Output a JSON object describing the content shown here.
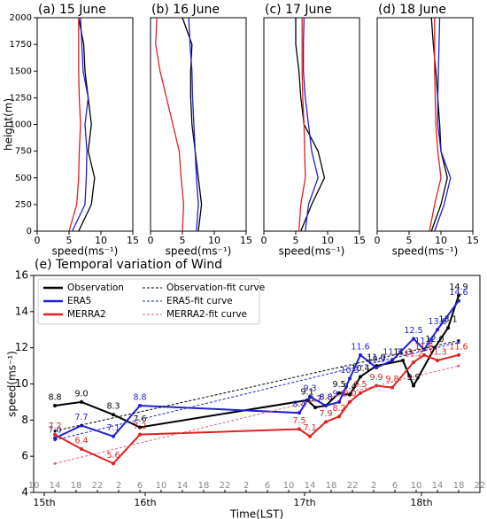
{
  "chart_data": [
    {
      "type": "line",
      "title": "(a) 15 June",
      "x_label": "speed(ms⁻¹)",
      "y_label": "height(m)",
      "y": [
        0,
        250,
        500,
        750,
        1000,
        1250,
        1500,
        1750,
        2000
      ],
      "series": [
        {
          "color": "#000000",
          "values": [
            6.5,
            8.5,
            9,
            8,
            8.5,
            8,
            7.5,
            7.3,
            6.5
          ]
        },
        {
          "color": "#2020d0",
          "values": [
            5.5,
            7.5,
            7.7,
            7.8,
            7.5,
            8,
            7.2,
            7,
            6.8
          ]
        },
        {
          "color": "#e02020",
          "values": [
            5,
            6.2,
            6.5,
            6.6,
            6.8,
            6.6,
            6.5,
            6.5,
            6.5
          ]
        }
      ],
      "xlim": [
        0,
        15
      ],
      "xticks": [
        0,
        5,
        10,
        15
      ],
      "ylim": [
        0,
        2000
      ],
      "yticks": [
        0,
        250,
        500,
        750,
        1000,
        1250,
        1500,
        1750,
        2000
      ]
    },
    {
      "type": "line",
      "title": "(b) 16 June",
      "x_label": "speed(ms⁻¹)",
      "y": [
        0,
        250,
        500,
        750,
        1000,
        1250,
        1500,
        1750,
        2000
      ],
      "series": [
        {
          "color": "#000000",
          "values": [
            7.5,
            8,
            7.5,
            7,
            6.5,
            6.3,
            6.3,
            6.5,
            5
          ]
        },
        {
          "color": "#2020d0",
          "values": [
            7.2,
            7.5,
            7.2,
            7,
            6.8,
            6.6,
            6.5,
            6.2,
            6
          ]
        },
        {
          "color": "#e02020",
          "values": [
            5,
            5.2,
            4.8,
            4.5,
            3.5,
            2.5,
            1.5,
            0.8,
            1
          ]
        }
      ],
      "xlim": [
        0,
        15
      ],
      "xticks": [
        0,
        5,
        10,
        15
      ],
      "ylim": [
        0,
        2000
      ]
    },
    {
      "type": "line",
      "title": "(c) 17 June",
      "x_label": "speed(ms⁻¹)",
      "y": [
        0,
        250,
        500,
        750,
        1000,
        1250,
        1500,
        1750,
        2000
      ],
      "series": [
        {
          "color": "#000000",
          "values": [
            5.8,
            7.5,
            9.5,
            8.5,
            6.3,
            5.8,
            5.5,
            5,
            5
          ]
        },
        {
          "color": "#2020d0",
          "values": [
            6.5,
            7,
            8.5,
            7.5,
            7,
            6.5,
            6.2,
            6.2,
            6.3
          ]
        },
        {
          "color": "#e02020",
          "values": [
            5.5,
            5.8,
            6.5,
            6.4,
            6.3,
            6.1,
            6,
            6,
            6
          ]
        }
      ],
      "xlim": [
        0,
        15
      ],
      "xticks": [
        0,
        5,
        10,
        15
      ],
      "ylim": [
        0,
        2000
      ]
    },
    {
      "type": "line",
      "title": "(d) 18 June",
      "x_label": "speed(ms⁻¹)",
      "y": [
        0,
        250,
        500,
        750,
        1000,
        1250,
        1500,
        1750,
        2000
      ],
      "series": [
        {
          "color": "#000000",
          "values": [
            8.5,
            10,
            11,
            10,
            9.8,
            9.5,
            9.2,
            8.8,
            8.5
          ]
        },
        {
          "color": "#2020d0",
          "values": [
            9,
            10.5,
            11.5,
            10,
            9.5,
            9.5,
            9.6,
            9.7,
            9.8
          ]
        },
        {
          "color": "#e02020",
          "values": [
            8.2,
            9,
            10,
            9.5,
            9.2,
            9.1,
            9,
            9,
            9
          ]
        }
      ],
      "xlim": [
        0,
        15
      ],
      "xticks": [
        0,
        5,
        10,
        15
      ],
      "ylim": [
        0,
        2000
      ]
    },
    {
      "type": "line",
      "title": "(e) Temporal variation of Wind",
      "x_label": "Time(LST)",
      "y_label": "speed(ms⁻¹)",
      "legend": "upper left",
      "series": [
        {
          "name": "Observation",
          "color": "#000000",
          "x": [
            14,
            19,
            25,
            30,
            61.5,
            63,
            65,
            67.5,
            69.5,
            71.5,
            74.5,
            79.5,
            81.5,
            85.5,
            88,
            90
          ],
          "values": [
            8.8,
            9.0,
            8.3,
            7.6,
            9.1,
            8.7,
            8.8,
            9.5,
            9.4,
            10.4,
            11.0,
            11.3,
            9.9,
            12.0,
            13.1,
            14.9
          ],
          "value_labels": [
            "8.8",
            "9.0",
            "8.3",
            "7.6",
            "9.1",
            "8.7",
            "8.8",
            "9.5",
            "9.4",
            "10.4",
            "11.0",
            "11.3",
            "9.9",
            "12.0",
            "13.1",
            "14.9"
          ]
        },
        {
          "name": "ERA5",
          "color": "#2020d0",
          "x": [
            14,
            19,
            25,
            30,
            60,
            62,
            65,
            67.5,
            69.5,
            71.5,
            74.5,
            77.5,
            81.5,
            83.5,
            86,
            90
          ],
          "values": [
            7.0,
            7.7,
            7.1,
            8.8,
            8.4,
            9.3,
            8.8,
            9.0,
            10.3,
            11.6,
            10.9,
            11.3,
            12.5,
            11.9,
            13.0,
            14.6
          ],
          "value_labels": [
            "7.0",
            "7.7",
            "7.1",
            "8.8",
            "8.4",
            "9.3",
            "8.8",
            "9.0",
            "10.3",
            "11.6",
            "10.9",
            "11.3",
            "12.5",
            "11.9",
            "13.0",
            "14.6"
          ]
        },
        {
          "name": "MERRA2",
          "color": "#e02020",
          "x": [
            14,
            19,
            25,
            30,
            60,
            62,
            65,
            67.5,
            69.5,
            71.5,
            74.5,
            77.5,
            81.5,
            83.5,
            86,
            90
          ],
          "values": [
            7.2,
            6.4,
            5.6,
            7.2,
            7.5,
            7.1,
            7.9,
            8.2,
            9.0,
            9.5,
            9.9,
            9.8,
            11.2,
            11.6,
            11.3,
            11.6
          ],
          "value_labels": [
            "7.2",
            "6.4",
            "5.6",
            "7.2",
            "7.5",
            "7.1",
            "7.9",
            "8.2",
            "9.0",
            "9.5",
            "9.9",
            "9.8",
            "11.2",
            "11.6",
            "11.3",
            "11.6"
          ]
        },
        {
          "name": "Observation-fit curve",
          "color": "#000000",
          "dash": true,
          "x": [
            14,
            90
          ],
          "values": [
            7.4,
            12.4
          ]
        },
        {
          "name": "ERA5-fit curve",
          "color": "#2020d0",
          "dash": true,
          "x": [
            14,
            90
          ],
          "values": [
            6.9,
            12.3
          ]
        },
        {
          "name": "MERRA2-fit curve",
          "color": "#e06080",
          "dash": true,
          "x": [
            14,
            90
          ],
          "values": [
            5.6,
            11.0
          ]
        }
      ],
      "xlim": [
        10,
        94
      ],
      "xticks": [
        10,
        14,
        18,
        22,
        {
          "value": 26,
          "label": "2"
        },
        {
          "value": 30,
          "label": "6"
        },
        {
          "value": 34,
          "label": "10"
        },
        {
          "value": 38,
          "label": "14"
        },
        {
          "value": 42,
          "label": "18"
        },
        {
          "value": 46,
          "label": "22"
        },
        {
          "value": 50,
          "label": "2"
        },
        {
          "value": 54,
          "label": "6"
        },
        {
          "value": 58,
          "label": "10"
        },
        {
          "value": 62,
          "label": "14"
        },
        {
          "value": 66,
          "label": "18"
        },
        {
          "value": 70,
          "label": "22"
        },
        {
          "value": 74,
          "label": "2"
        },
        {
          "value": 78,
          "label": "6"
        },
        {
          "value": 82,
          "label": "10"
        },
        {
          "value": 86,
          "label": "14"
        },
        {
          "value": 90,
          "label": "18"
        },
        {
          "value": 94,
          "label": "22"
        }
      ],
      "day_labels": [
        {
          "value": 12,
          "label": "15th"
        },
        {
          "value": 31,
          "label": "16th"
        },
        {
          "value": 61,
          "label": "17th"
        },
        {
          "value": 83,
          "label": "18th"
        }
      ],
      "ylim": [
        4,
        16
      ],
      "yticks": [
        4,
        6,
        8,
        10,
        12,
        14,
        16
      ]
    }
  ]
}
